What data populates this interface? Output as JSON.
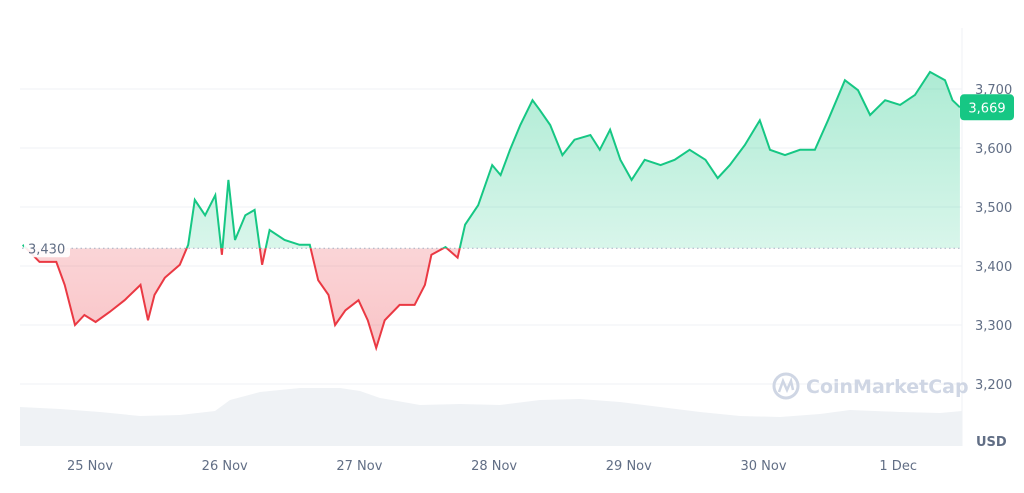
{
  "chart_data": {
    "type": "area",
    "ylabel": "USD",
    "ylim": [
      3150,
      3800
    ],
    "yticks": [
      "3,200",
      "3,300",
      "3,400",
      "3,500",
      "3,600",
      "3,700"
    ],
    "ytick_values": [
      3200,
      3300,
      3400,
      3500,
      3600,
      3700
    ],
    "xticks": [
      "25 Nov",
      "26 Nov",
      "27 Nov",
      "28 Nov",
      "29 Nov",
      "30 Nov",
      "1 Dec"
    ],
    "grid": true,
    "baseline": {
      "value": 3430,
      "label": "3,430"
    },
    "current_price": {
      "value": 3669,
      "label": "3,669"
    },
    "watermark": "CoinMarketCap",
    "colors": {
      "up": "#16c784",
      "down": "#ea3943",
      "price_tag": "#16c784"
    },
    "series": [
      {
        "points": [
          [
            "24 Nov 12:00",
            3436
          ],
          [
            "24 Nov 15:00",
            3407
          ],
          [
            "24 Nov 18:00",
            3407
          ],
          [
            "24 Nov 19:30",
            3368
          ],
          [
            "24 Nov 21:20",
            3300
          ],
          [
            "24 Nov 23:00",
            3317
          ],
          [
            "25 Nov 01:00",
            3305
          ],
          [
            "25 Nov 03:30",
            3322
          ],
          [
            "25 Nov 06:10",
            3342
          ],
          [
            "25 Nov 09:00",
            3368
          ],
          [
            "25 Nov 10:20",
            3308
          ],
          [
            "25 Nov 11:30",
            3351
          ],
          [
            "25 Nov 13:20",
            3380
          ],
          [
            "25 Nov 16:00",
            3402
          ],
          [
            "25 Nov 17:30",
            3436
          ],
          [
            "25 Nov 18:40",
            3512
          ],
          [
            "25 Nov 20:30",
            3486
          ],
          [
            "25 Nov 22:20",
            3520
          ],
          [
            "25 Nov 23:30",
            3419
          ],
          [
            "26 Nov 00:40",
            3546
          ],
          [
            "26 Nov 01:50",
            3444
          ],
          [
            "26 Nov 03:40",
            3486
          ],
          [
            "26 Nov 05:20",
            3495
          ],
          [
            "26 Nov 06:40",
            3402
          ],
          [
            "26 Nov 08:00",
            3461
          ],
          [
            "26 Nov 10:40",
            3444
          ],
          [
            "26 Nov 13:20",
            3436
          ],
          [
            "26 Nov 15:10",
            3436
          ],
          [
            "26 Nov 16:40",
            3376
          ],
          [
            "26 Nov 18:30",
            3351
          ],
          [
            "26 Nov 19:40",
            3300
          ],
          [
            "26 Nov 21:30",
            3325
          ],
          [
            "26 Nov 23:50",
            3342
          ],
          [
            "27 Nov 01:30",
            3308
          ],
          [
            "27 Nov 03:00",
            3261
          ],
          [
            "27 Nov 04:30",
            3308
          ],
          [
            "27 Nov 07:10",
            3334
          ],
          [
            "27 Nov 09:50",
            3334
          ],
          [
            "27 Nov 11:40",
            3368
          ],
          [
            "27 Nov 12:50",
            3419
          ],
          [
            "27 Nov 15:20",
            3432
          ],
          [
            "27 Nov 17:30",
            3414
          ],
          [
            "27 Nov 18:50",
            3470
          ],
          [
            "27 Nov 21:10",
            3503
          ],
          [
            "27 Nov 23:40",
            3571
          ],
          [
            "28 Nov 01:10",
            3554
          ],
          [
            "28 Nov 02:50",
            3597
          ],
          [
            "28 Nov 04:40",
            3639
          ],
          [
            "28 Nov 06:50",
            3681
          ],
          [
            "28 Nov 08:10",
            3664
          ],
          [
            "28 Nov 10:00",
            3639
          ],
          [
            "28 Nov 12:10",
            3588
          ],
          [
            "28 Nov 14:20",
            3614
          ],
          [
            "28 Nov 17:10",
            3622
          ],
          [
            "28 Nov 18:50",
            3597
          ],
          [
            "28 Nov 20:40",
            3631
          ],
          [
            "28 Nov 22:30",
            3580
          ],
          [
            "29 Nov 00:30",
            3546
          ],
          [
            "29 Nov 02:50",
            3580
          ],
          [
            "29 Nov 05:40",
            3571
          ],
          [
            "29 Nov 08:10",
            3580
          ],
          [
            "29 Nov 10:50",
            3597
          ],
          [
            "29 Nov 13:40",
            3580
          ],
          [
            "29 Nov 15:50",
            3549
          ],
          [
            "29 Nov 18:00",
            3571
          ],
          [
            "29 Nov 20:40",
            3605
          ],
          [
            "29 Nov 23:20",
            3647
          ],
          [
            "30 Nov 01:10",
            3597
          ],
          [
            "30 Nov 03:50",
            3588
          ],
          [
            "30 Nov 06:30",
            3597
          ],
          [
            "30 Nov 09:10",
            3597
          ],
          [
            "30 Nov 11:30",
            3647
          ],
          [
            "30 Nov 14:30",
            3715
          ],
          [
            "30 Nov 16:50",
            3698
          ],
          [
            "30 Nov 19:00",
            3656
          ],
          [
            "30 Nov 21:40",
            3681
          ],
          [
            "1 Dec 00:20",
            3673
          ],
          [
            "1 Dec 03:00",
            3690
          ],
          [
            "1 Dec 05:40",
            3729
          ],
          [
            "1 Dec 08:20",
            3715
          ],
          [
            "1 Dec 09:40",
            3681
          ],
          [
            "1 Dec 11:00",
            3669
          ]
        ]
      }
    ]
  }
}
